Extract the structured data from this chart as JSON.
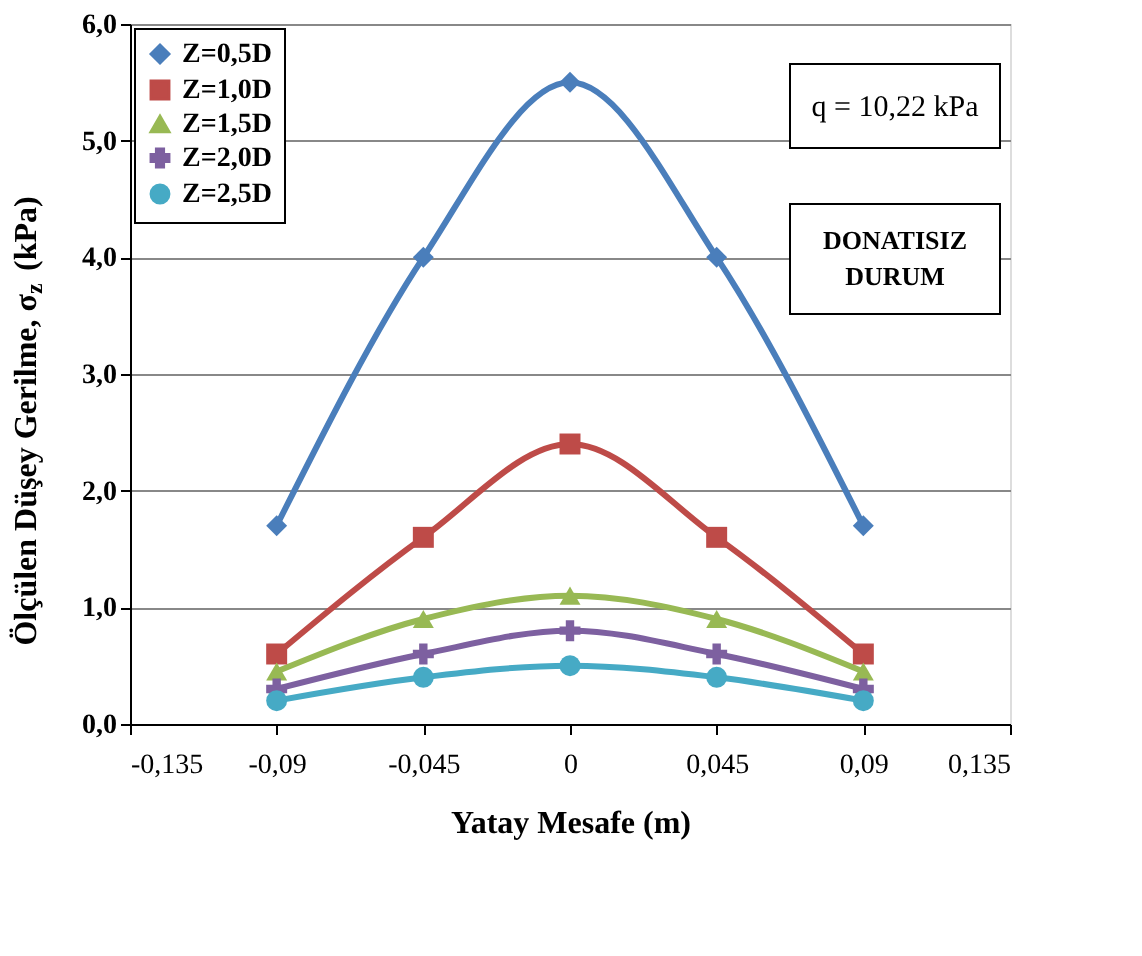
{
  "chart_data": {
    "type": "line",
    "xlabel": "Yatay Mesafe (m)",
    "ylabel": "Ölçülen Düşey Gerilme, σ$_{z}$ (kPa)",
    "x": [
      -0.09,
      -0.045,
      0,
      0.045,
      0.09
    ],
    "series": [
      {
        "name": "Z=0,5D",
        "color": "#4a7ebb",
        "marker": "diamond",
        "values": [
          1.7,
          4.0,
          5.5,
          4.0,
          1.7
        ]
      },
      {
        "name": "Z=1,0D",
        "color": "#be4b48",
        "marker": "square",
        "values": [
          0.6,
          1.6,
          2.4,
          1.6,
          0.6
        ]
      },
      {
        "name": "Z=1,5D",
        "color": "#98b954",
        "marker": "triangle",
        "values": [
          0.45,
          0.9,
          1.1,
          0.9,
          0.45
        ]
      },
      {
        "name": "Z=2,0D",
        "color": "#7d60a0",
        "marker": "cross",
        "values": [
          0.3,
          0.6,
          0.8,
          0.6,
          0.3
        ]
      },
      {
        "name": "Z=2,5D",
        "color": "#46aac5",
        "marker": "circle",
        "values": [
          0.2,
          0.4,
          0.5,
          0.4,
          0.2
        ]
      }
    ],
    "xlim": [
      -0.135,
      0.135
    ],
    "xticks": [
      {
        "value": -0.135,
        "label": "-0,135"
      },
      {
        "value": -0.09,
        "label": "-0,09"
      },
      {
        "value": -0.045,
        "label": "-0,045"
      },
      {
        "value": 0,
        "label": "0"
      },
      {
        "value": 0.045,
        "label": "0,045"
      },
      {
        "value": 0.09,
        "label": "0,09"
      },
      {
        "value": 0.135,
        "label": "0,135"
      }
    ],
    "ylim": [
      0,
      6
    ],
    "yticks": [
      {
        "value": 0,
        "label": "0,0"
      },
      {
        "value": 1,
        "label": "1,0"
      },
      {
        "value": 2,
        "label": "2,0"
      },
      {
        "value": 3,
        "label": "3,0"
      },
      {
        "value": 4,
        "label": "4,0"
      },
      {
        "value": 5,
        "label": "5,0"
      },
      {
        "value": 6,
        "label": "6,0"
      }
    ],
    "grid": "y",
    "legend": "top left",
    "line_style": "solid",
    "annotations": [
      "q = 10,22 kPa",
      "DONATISIZ DURUM"
    ]
  }
}
